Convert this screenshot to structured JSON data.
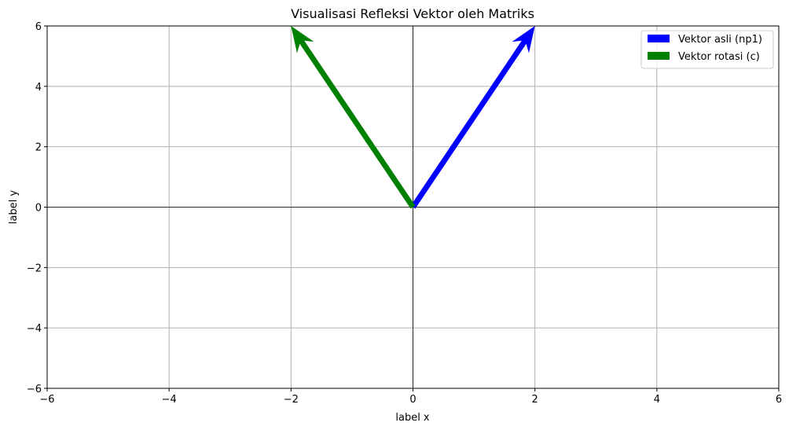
{
  "chart_data": {
    "type": "quiver",
    "title": "Visualisasi Refleksi Vektor oleh Matriks",
    "xlabel": "label x",
    "ylabel": "label y",
    "xlim": [
      -6,
      6
    ],
    "ylim": [
      -6,
      6
    ],
    "xticks": [
      -6,
      -4,
      -2,
      0,
      2,
      4,
      6
    ],
    "yticks": [
      -6,
      -4,
      -2,
      0,
      2,
      4,
      6
    ],
    "xtick_labels": [
      "−6",
      "−4",
      "−2",
      "0",
      "2",
      "4",
      "6"
    ],
    "ytick_labels": [
      "−6",
      "−4",
      "−2",
      "0",
      "2",
      "4",
      "6"
    ],
    "grid": true,
    "zero_lines": true,
    "legend_position": "top-right",
    "series": [
      {
        "name": "Vektor asli (np1)",
        "color": "#0000ff",
        "origin": [
          0,
          0
        ],
        "vector": [
          2,
          6
        ]
      },
      {
        "name": "Vektor rotasi (c)",
        "color": "#008000",
        "origin": [
          0,
          0
        ],
        "vector": [
          -2,
          6
        ]
      }
    ]
  }
}
